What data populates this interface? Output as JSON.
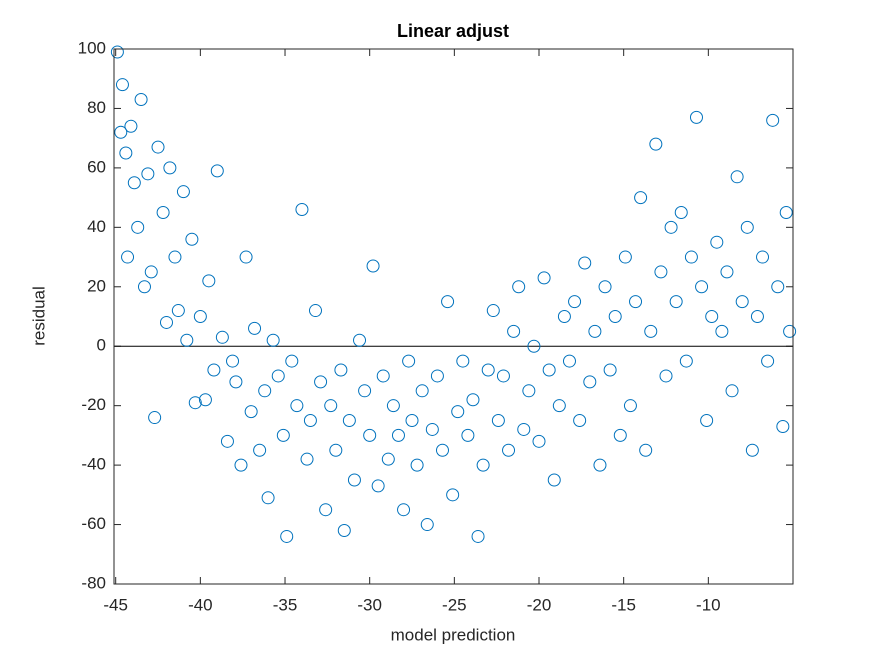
{
  "chart_data": {
    "type": "scatter",
    "title": "Linear adjust",
    "x_label": "model prediction",
    "y_label": "residual",
    "color": "#0072bd",
    "marker": "open-circle",
    "grid": false,
    "reference_line": 0,
    "xlim": [
      -45.1,
      -5
    ],
    "ylim": [
      -80,
      100
    ],
    "xticks": [
      -45,
      -40,
      -35,
      -30,
      -25,
      -20,
      -15,
      -10
    ],
    "yticks": [
      -80,
      -60,
      -40,
      -20,
      0,
      20,
      40,
      60,
      80,
      100
    ],
    "x": [
      -44.9,
      -44.7,
      -44.6,
      -44.4,
      -44.3,
      -44.1,
      -43.9,
      -43.7,
      -43.5,
      -43.3,
      -43.1,
      -42.9,
      -42.7,
      -42.5,
      -42.2,
      -42.0,
      -41.8,
      -41.5,
      -41.3,
      -41.0,
      -40.8,
      -40.5,
      -40.3,
      -40.0,
      -39.7,
      -39.5,
      -39.2,
      -39.0,
      -38.7,
      -38.4,
      -38.1,
      -37.9,
      -37.6,
      -37.3,
      -37.0,
      -36.8,
      -36.5,
      -36.2,
      -36.0,
      -35.7,
      -35.4,
      -35.1,
      -34.9,
      -34.6,
      -34.3,
      -34.0,
      -33.7,
      -33.5,
      -33.2,
      -32.9,
      -32.6,
      -32.3,
      -32.0,
      -31.7,
      -31.5,
      -31.2,
      -30.9,
      -30.6,
      -30.3,
      -30.0,
      -29.8,
      -29.5,
      -29.2,
      -28.9,
      -28.6,
      -28.3,
      -28.0,
      -27.7,
      -27.5,
      -27.2,
      -26.9,
      -26.6,
      -26.3,
      -26.0,
      -25.7,
      -25.4,
      -25.1,
      -24.8,
      -24.5,
      -24.2,
      -23.9,
      -23.6,
      -23.3,
      -23.0,
      -22.7,
      -22.4,
      -22.1,
      -21.8,
      -21.5,
      -21.2,
      -20.9,
      -20.6,
      -20.3,
      -20.0,
      -19.7,
      -19.4,
      -19.1,
      -18.8,
      -18.5,
      -18.2,
      -17.9,
      -17.6,
      -17.3,
      -17.0,
      -16.7,
      -16.4,
      -16.1,
      -15.8,
      -15.5,
      -15.2,
      -14.9,
      -14.6,
      -14.3,
      -14.0,
      -13.7,
      -13.4,
      -13.1,
      -12.8,
      -12.5,
      -12.2,
      -11.9,
      -11.6,
      -11.3,
      -11.0,
      -10.7,
      -10.4,
      -10.1,
      -9.8,
      -9.5,
      -9.2,
      -8.9,
      -8.6,
      -8.3,
      -8.0,
      -7.7,
      -7.4,
      -7.1,
      -6.8,
      -6.5,
      -6.2,
      -5.9,
      -5.6,
      -5.4,
      -5.2
    ],
    "values": [
      99,
      72,
      88,
      65,
      30,
      74,
      55,
      40,
      83,
      20,
      58,
      25,
      -24,
      67,
      45,
      8,
      60,
      30,
      12,
      52,
      2,
      36,
      -19,
      10,
      -18,
      22,
      -8,
      59,
      3,
      -32,
      -5,
      -12,
      -40,
      30,
      -22,
      6,
      -35,
      -15,
      -51,
      2,
      -10,
      -30,
      -64,
      -5,
      -20,
      46,
      -38,
      -25,
      12,
      -12,
      -55,
      -20,
      -35,
      -8,
      -62,
      -25,
      -45,
      2,
      -15,
      -30,
      27,
      -47,
      -10,
      -38,
      -20,
      -30,
      -55,
      -5,
      -25,
      -40,
      -15,
      -60,
      -28,
      -10,
      -35,
      15,
      -50,
      -22,
      -5,
      -30,
      -18,
      -64,
      -40,
      -8,
      12,
      -25,
      -10,
      -35,
      5,
      20,
      -28,
      -15,
      0,
      -32,
      23,
      -8,
      -45,
      -20,
      10,
      -5,
      15,
      -25,
      28,
      -12,
      5,
      -40,
      20,
      -8,
      10,
      -30,
      30,
      -20,
      15,
      50,
      -35,
      5,
      68,
      25,
      -10,
      40,
      15,
      45,
      -5,
      30,
      77,
      20,
      -25,
      10,
      35,
      5,
      25,
      -15,
      57,
      15,
      40,
      -35,
      10,
      30,
      -5,
      76,
      20,
      -27,
      45,
      5
    ]
  }
}
